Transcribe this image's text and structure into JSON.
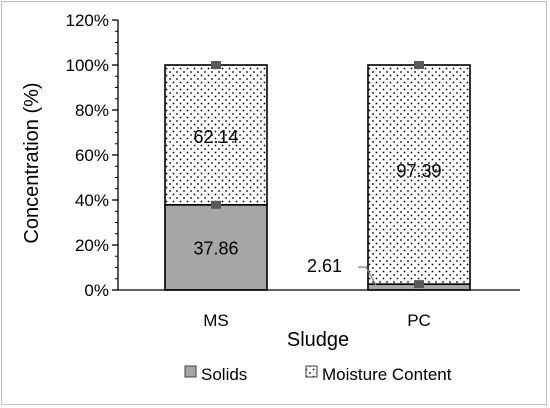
{
  "chart_data": {
    "type": "bar",
    "stacked": true,
    "categories": [
      "MS",
      "PC"
    ],
    "series": [
      {
        "name": "Solids",
        "values": [
          37.86,
          2.61
        ],
        "labels": [
          "37.86",
          "2.61"
        ],
        "color": "#a6a6a6",
        "pattern": "solid"
      },
      {
        "name": "Moisture Content",
        "values": [
          62.14,
          97.39
        ],
        "labels": [
          "62.14",
          "97.39"
        ],
        "color": "#ffffff",
        "pattern": "dots"
      }
    ],
    "error_markers": [
      [
        37.86,
        100
      ],
      [
        2.61,
        100
      ]
    ],
    "xlabel": "Sludge",
    "ylabel": "Concentration (%)",
    "ylim": [
      0,
      120
    ],
    "yticks": [
      0,
      20,
      40,
      60,
      80,
      100,
      120
    ],
    "ytick_labels": [
      "0%",
      "20%",
      "40%",
      "60%",
      "80%",
      "100%",
      "120%"
    ],
    "grid": false,
    "legend": "bottom"
  }
}
